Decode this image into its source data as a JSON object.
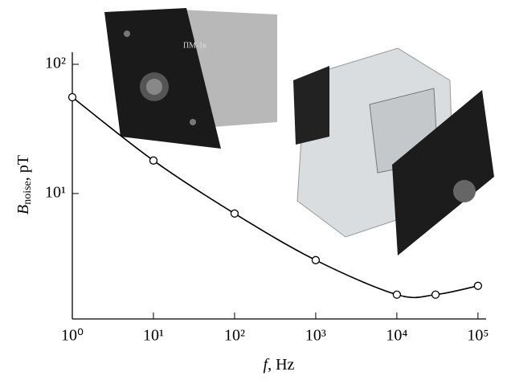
{
  "chart_data": {
    "type": "line",
    "xlabel": {
      "symbol": "f",
      "unit": ", Hz"
    },
    "ylabel": {
      "symbol": "B",
      "subscript": "noise",
      "unit": ", pT"
    },
    "x": [
      1,
      10,
      100,
      1000,
      10000,
      30000,
      100000
    ],
    "series": [
      {
        "name": "B",
        "color": "#000000",
        "values": [
          55.6,
          18,
          7.0,
          3.05,
          1.65,
          1.65,
          1.93
        ]
      }
    ],
    "xscale": "log",
    "yscale": "log",
    "xlim": [
      1,
      126000
    ],
    "ylim": [
      1.07,
      124
    ],
    "xticks": [
      {
        "value": 1,
        "label": "10⁰"
      },
      {
        "value": 10,
        "label": "10¹"
      },
      {
        "value": 100,
        "label": "10²"
      },
      {
        "value": 1000,
        "label": "10³"
      },
      {
        "value": 10000,
        "label": "10⁴"
      },
      {
        "value": 100000,
        "label": "10⁵"
      }
    ],
    "yticks": [
      {
        "value": 10,
        "label": "10¹"
      },
      {
        "value": 100,
        "label": "10²"
      }
    ],
    "annotations": [
      "ПМ-1к"
    ]
  }
}
